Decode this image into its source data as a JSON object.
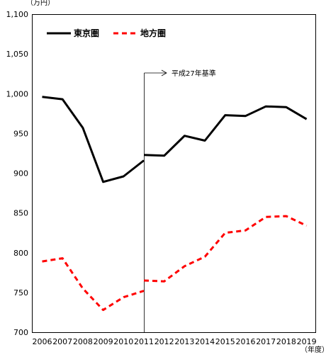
{
  "chart_data": {
    "type": "line",
    "y_unit": "（万円）",
    "x_unit": "（年度）",
    "x": [
      "2006",
      "2007",
      "2008",
      "2009",
      "2010",
      "2011",
      "2012",
      "2013",
      "2014",
      "2015",
      "2016",
      "2017",
      "2018",
      "2019"
    ],
    "ylim": [
      700,
      1100
    ],
    "yticks": [
      "1,100",
      "1,050",
      "1,000",
      "950",
      "900",
      "850",
      "800",
      "750",
      "700"
    ],
    "ytick_values": [
      1100,
      1050,
      1000,
      950,
      900,
      850,
      800,
      750,
      700
    ],
    "grid": false,
    "legend_position": "top-left",
    "break_after": "2011",
    "series": [
      {
        "name": "東京圏",
        "color": "#000000",
        "dash": "solid",
        "segments": [
          {
            "x": [
              "2006",
              "2007",
              "2008",
              "2009",
              "2010",
              "2011"
            ],
            "values": [
              996,
              993,
              957,
              889,
              896,
              916
            ]
          },
          {
            "x": [
              "2011",
              "2012",
              "2013",
              "2014",
              "2015",
              "2016",
              "2017",
              "2018",
              "2019"
            ],
            "values": [
              923,
              922,
              947,
              941,
              973,
              972,
              984,
              983,
              968
            ]
          }
        ]
      },
      {
        "name": "地方圏",
        "color": "#ff0000",
        "dash": "dashed",
        "segments": [
          {
            "x": [
              "2006",
              "2007",
              "2008",
              "2009",
              "2010",
              "2011"
            ],
            "values": [
              789,
              793,
              755,
              728,
              744,
              752
            ]
          },
          {
            "x": [
              "2011",
              "2012",
              "2013",
              "2014",
              "2015",
              "2016",
              "2017",
              "2018",
              "2019"
            ],
            "values": [
              765,
              764,
              783,
              795,
              825,
              828,
              845,
              846,
              834
            ]
          }
        ]
      }
    ],
    "annotations": [
      {
        "text": "平成27年基準",
        "at_x": "2011",
        "at_y": 1000,
        "arrow": "right"
      }
    ]
  }
}
